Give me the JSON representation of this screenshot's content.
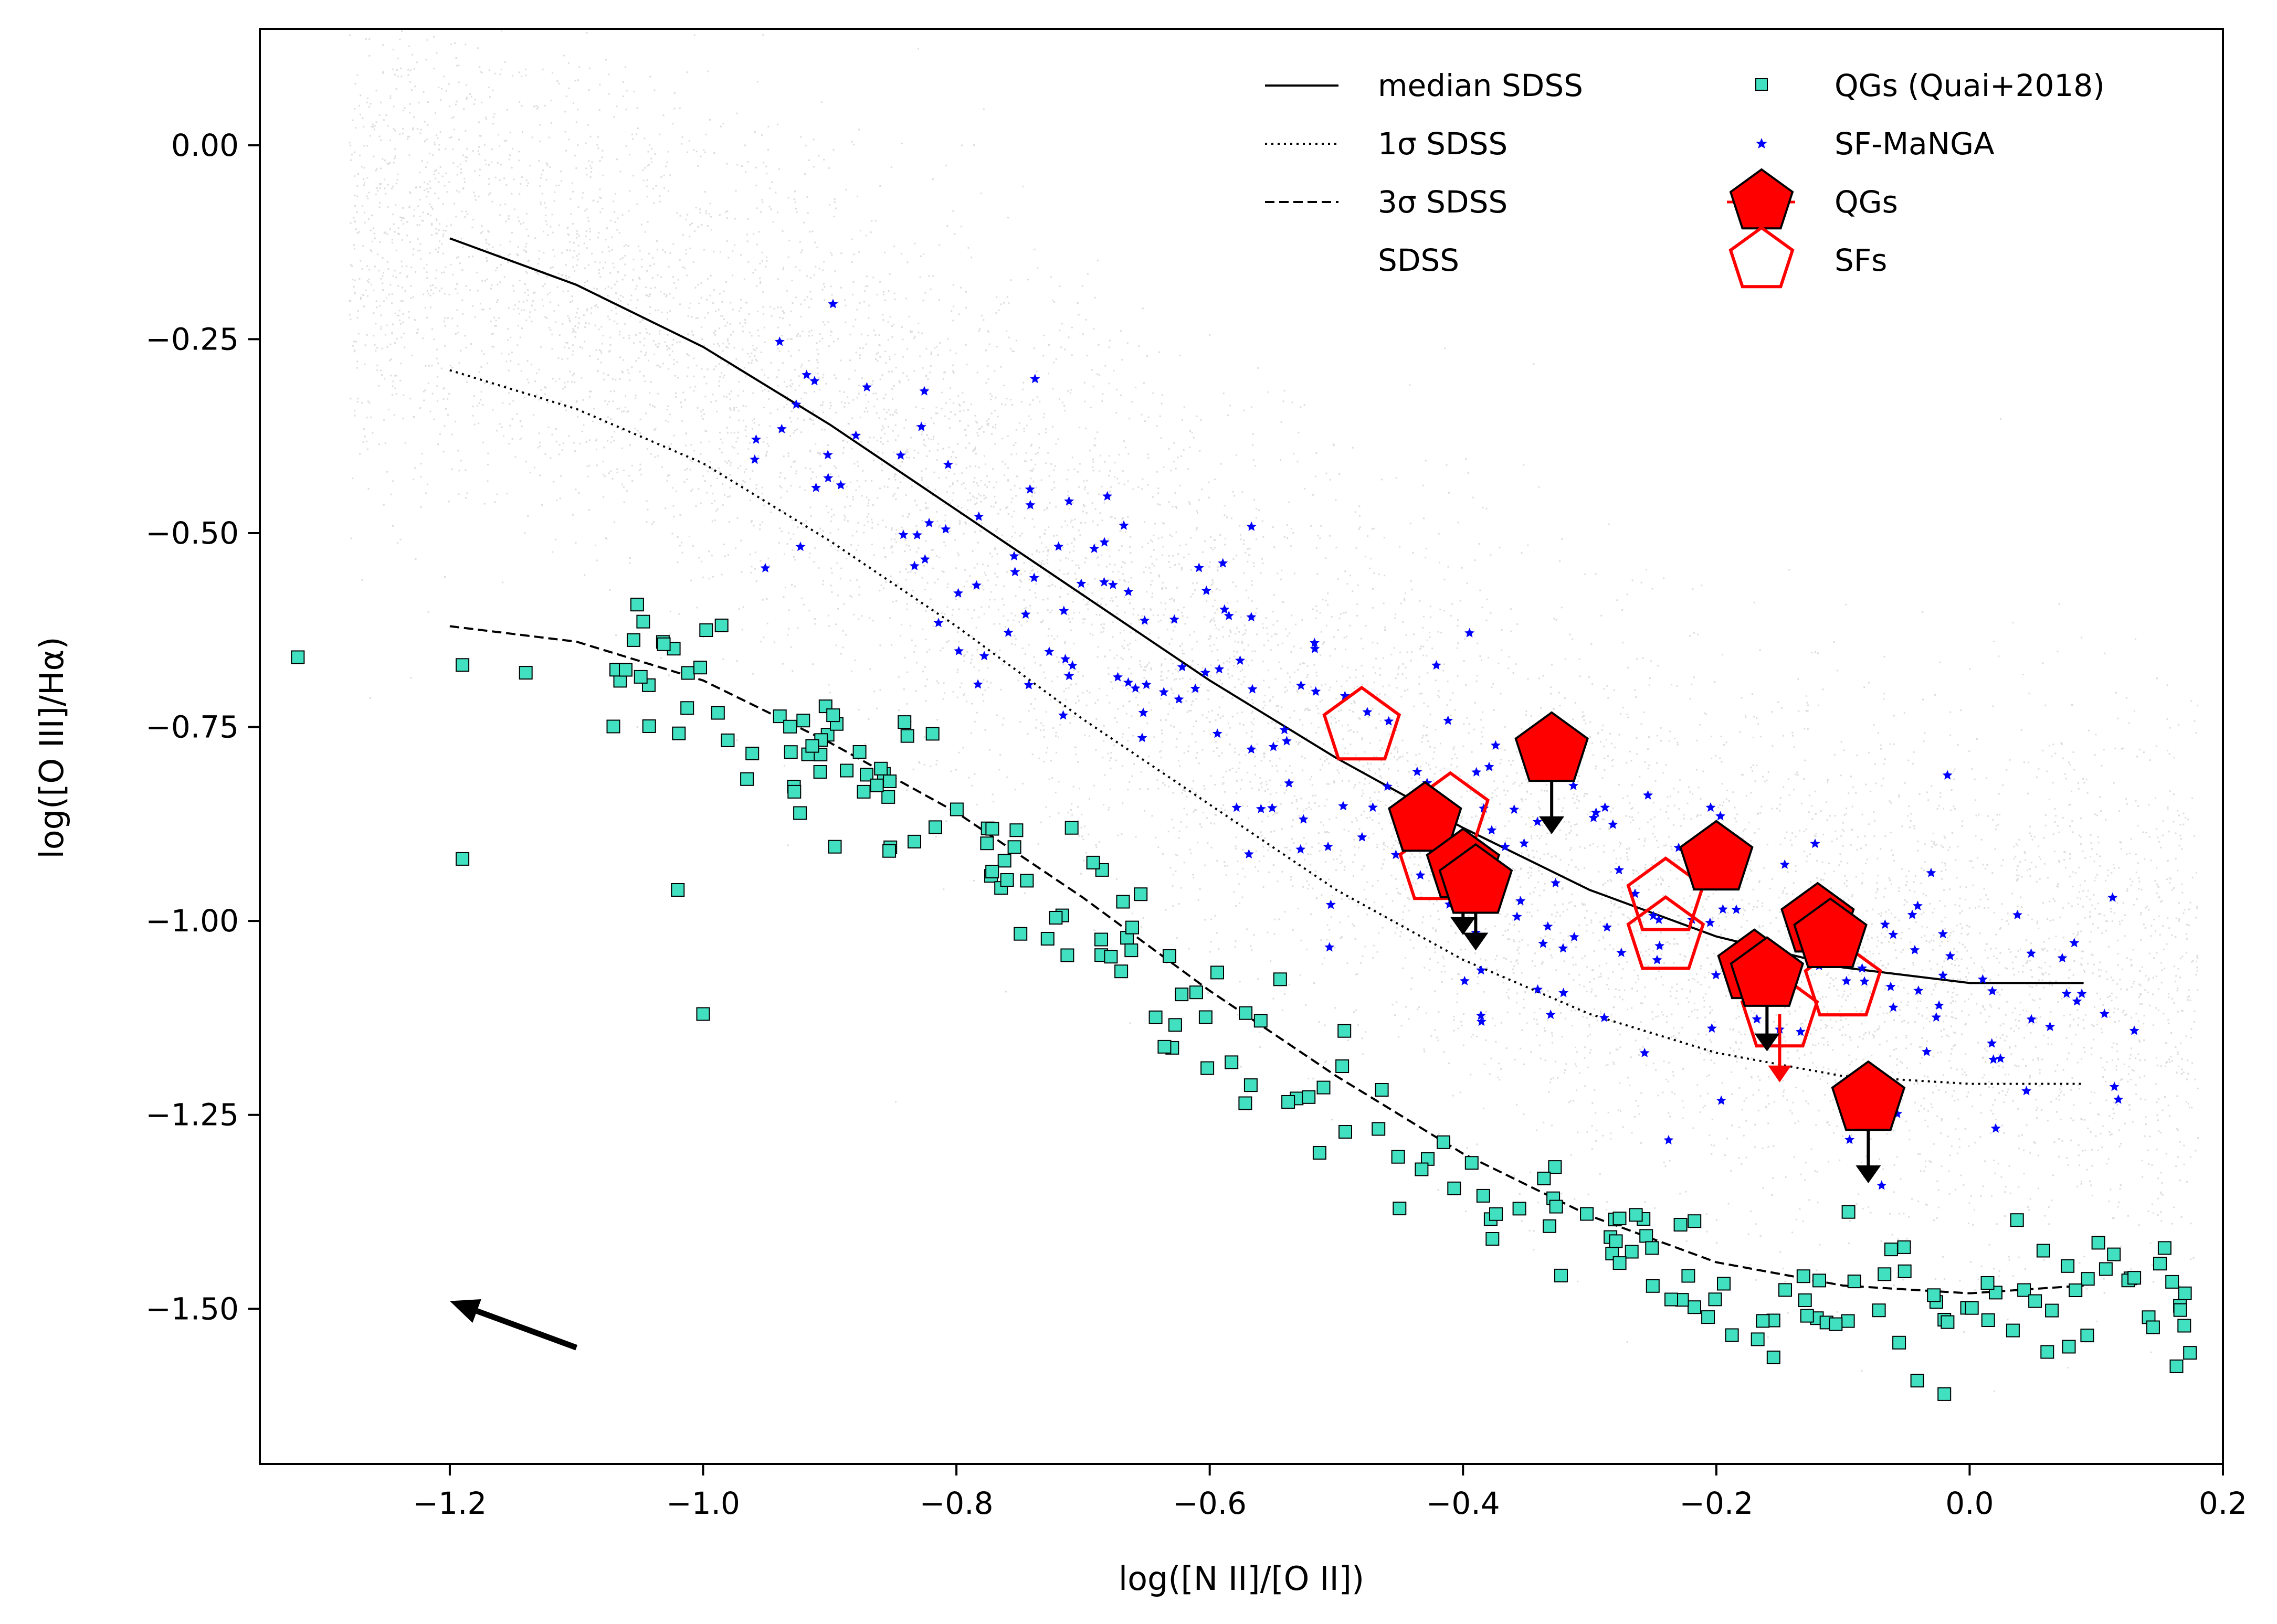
{
  "chart_data": {
    "type": "scatter",
    "title": "",
    "xlabel": "log([N II]/[O II])",
    "ylabel": "log([O III]/Hα)",
    "xlim": [
      -1.35,
      0.2
    ],
    "ylim": [
      -1.7,
      0.15
    ],
    "xticks": [
      -1.2,
      -1.0,
      -0.8,
      -0.6,
      -0.4,
      -0.2,
      0.0,
      0.2
    ],
    "xtick_labels": [
      "−1.2",
      "−1.0",
      "−0.8",
      "−0.6",
      "−0.4",
      "−0.2",
      "0.0",
      "0.2"
    ],
    "yticks": [
      0.0,
      -0.25,
      -0.5,
      -0.75,
      -1.0,
      -1.25,
      -1.5
    ],
    "ytick_labels": [
      "0.00",
      "−0.25",
      "−0.50",
      "−0.75",
      "−1.00",
      "−1.25",
      "−1.50"
    ],
    "grid": false,
    "legend_position": "top-right",
    "legend": {
      "col1": [
        "median SDSS",
        "1σ SDSS",
        "3σ SDSS",
        "SDSS"
      ],
      "col2": [
        "QGs (Quai+2018)",
        "SF-MaNGA",
        "QGs",
        "SFs"
      ]
    },
    "colors": {
      "sdss": "#808080",
      "qg_quai": "#40e0c0",
      "sf_manga": "#0000ff",
      "qgs": "#ff0000",
      "sfs": "#ff0000",
      "lines": "#000000"
    },
    "lines": [
      {
        "name": "median SDSS",
        "style": "solid",
        "x": [
          -1.2,
          -1.1,
          -1.0,
          -0.9,
          -0.8,
          -0.7,
          -0.6,
          -0.5,
          -0.4,
          -0.3,
          -0.2,
          -0.1,
          0.0,
          0.09
        ],
        "y": [
          -0.12,
          -0.18,
          -0.26,
          -0.36,
          -0.47,
          -0.58,
          -0.69,
          -0.79,
          -0.88,
          -0.96,
          -1.02,
          -1.06,
          -1.08,
          -1.08
        ]
      },
      {
        "name": "1σ SDSS",
        "style": "dotted",
        "x": [
          -1.2,
          -1.1,
          -1.0,
          -0.9,
          -0.8,
          -0.7,
          -0.6,
          -0.5,
          -0.4,
          -0.3,
          -0.2,
          -0.1,
          0.0,
          0.09
        ],
        "y": [
          -0.29,
          -0.34,
          -0.41,
          -0.51,
          -0.62,
          -0.74,
          -0.85,
          -0.96,
          -1.05,
          -1.12,
          -1.17,
          -1.2,
          -1.21,
          -1.21
        ]
      },
      {
        "name": "3σ SDSS",
        "style": "dashed",
        "x": [
          -1.2,
          -1.1,
          -1.0,
          -0.9,
          -0.8,
          -0.7,
          -0.6,
          -0.5,
          -0.4,
          -0.3,
          -0.2,
          -0.1,
          0.0,
          0.09
        ],
        "y": [
          -0.62,
          -0.64,
          -0.69,
          -0.77,
          -0.86,
          -0.97,
          -1.09,
          -1.2,
          -1.3,
          -1.38,
          -1.44,
          -1.47,
          -1.48,
          -1.47
        ]
      }
    ],
    "qgs": [
      {
        "x": -0.43,
        "y": -0.87,
        "upper_limit": false
      },
      {
        "x": -0.4,
        "y": -0.93,
        "upper_limit": true
      },
      {
        "x": -0.39,
        "y": -0.95,
        "upper_limit": true
      },
      {
        "x": -0.33,
        "y": -0.78,
        "upper_limit": true
      },
      {
        "x": -0.2,
        "y": -0.92,
        "upper_limit": false
      },
      {
        "x": -0.12,
        "y": -1.0,
        "upper_limit": false
      },
      {
        "x": -0.11,
        "y": -1.02,
        "upper_limit": false
      },
      {
        "x": -0.17,
        "y": -1.06,
        "upper_limit": false
      },
      {
        "x": -0.16,
        "y": -1.07,
        "upper_limit": true
      },
      {
        "x": -0.08,
        "y": -1.23,
        "upper_limit": true
      }
    ],
    "sfs": [
      {
        "x": -0.48,
        "y": -0.75
      },
      {
        "x": -0.41,
        "y": -0.86
      },
      {
        "x": -0.42,
        "y": -0.93
      },
      {
        "x": -0.24,
        "y": -0.97
      },
      {
        "x": -0.24,
        "y": -1.02
      },
      {
        "x": -0.15,
        "y": -1.12
      },
      {
        "x": -0.1,
        "y": -1.08
      }
    ],
    "qgs_upper_limit_arrows": [
      {
        "x": -0.4,
        "y_from": -0.93,
        "y_to": -1.01
      },
      {
        "x": -0.39,
        "y_from": -0.95,
        "y_to": -1.03
      },
      {
        "x": -0.33,
        "y_from": -0.78,
        "y_to": -0.88
      },
      {
        "x": -0.16,
        "y_from": -1.07,
        "y_to": -1.16
      },
      {
        "x": -0.08,
        "y_from": -1.23,
        "y_to": -1.33
      }
    ],
    "sfs_upper_limit_arrows": [
      {
        "x": -0.15,
        "y_from": -1.12,
        "y_to": -1.2
      }
    ],
    "reddening_arrow": {
      "x_from": -1.1,
      "y_from": -1.55,
      "x_to": -1.2,
      "y_to": -1.49
    }
  }
}
